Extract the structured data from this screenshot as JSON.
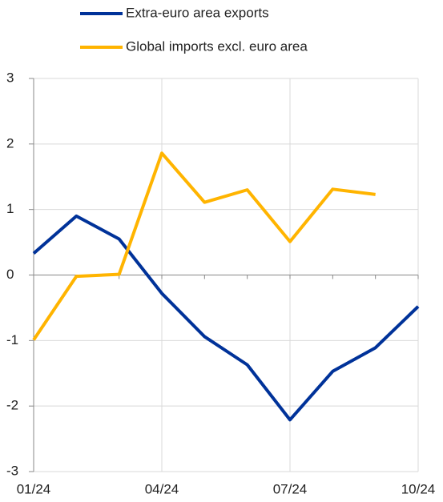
{
  "chart_data": {
    "type": "line",
    "categories": [
      "01/24",
      null,
      null,
      "04/24",
      null,
      null,
      "07/24",
      null,
      null,
      "10/24"
    ],
    "series": [
      {
        "name": "Extra-euro area exports",
        "color": "#003299",
        "values": [
          0.33,
          0.9,
          0.55,
          -0.28,
          -0.94,
          -1.37,
          -2.21,
          -1.47,
          -1.11,
          -0.48
        ]
      },
      {
        "name": "Global imports excl. euro area",
        "color": "#ffb400",
        "values": [
          -0.99,
          -0.02,
          0.01,
          1.86,
          1.11,
          1.3,
          0.51,
          1.31,
          1.23,
          null
        ]
      }
    ],
    "ylim": [
      -3,
      3
    ],
    "yticks": [
      -3,
      -2,
      -1,
      0,
      1,
      2,
      3
    ],
    "grid": true
  }
}
